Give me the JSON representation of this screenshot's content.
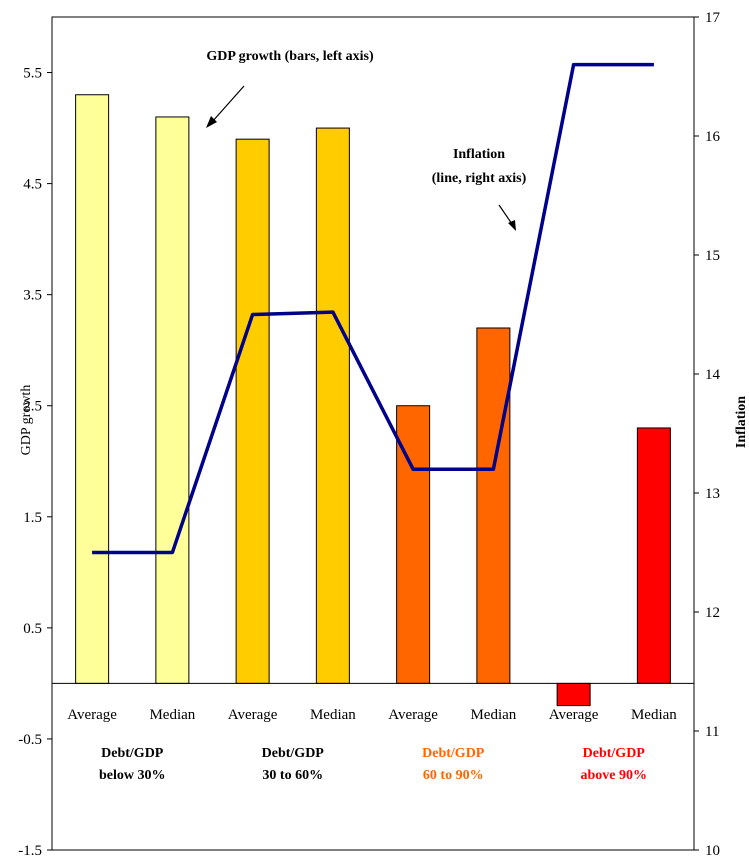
{
  "chart_data": {
    "type": "bar",
    "categories": [
      "Average",
      "Median",
      "Average",
      "Median",
      "Average",
      "Median",
      "Average",
      "Median"
    ],
    "groups": [
      {
        "label_line1": "Debt/GDP",
        "label_line2": "below 30%",
        "color": "#000000"
      },
      {
        "label_line1": "Debt/GDP",
        "label_line2": "30 to 60%",
        "color": "#000000"
      },
      {
        "label_line1": "Debt/GDP",
        "label_line2": "60 to 90%",
        "color": "#FF6600"
      },
      {
        "label_line1": "Debt/GDP",
        "label_line2": "above 90%",
        "color": "#FF0000"
      }
    ],
    "series": [
      {
        "type": "bar",
        "axis": "left",
        "values": [
          5.3,
          5.1,
          4.9,
          5.0,
          2.5,
          3.2,
          -0.2,
          2.3
        ],
        "colors": [
          "#FFFF99",
          "#FFFF99",
          "#FFCC00",
          "#FFCC00",
          "#FF6600",
          "#FF6600",
          "#FF0000",
          "#FF0000"
        ]
      },
      {
        "type": "line",
        "axis": "right",
        "values": [
          12.5,
          12.5,
          14.5,
          14.52,
          13.2,
          13.2,
          16.6,
          16.6
        ],
        "color": "#00008B"
      }
    ],
    "ylabel": "GDP growth",
    "y2label": "Inflation",
    "ylim": [
      -1.5,
      6.0
    ],
    "y2lim": [
      10,
      17
    ],
    "yticks": [
      "-1.5",
      "-0.5",
      "0.5",
      "1.5",
      "2.5",
      "3.5",
      "4.5",
      "5.5"
    ],
    "y2ticks": [
      "10",
      "11",
      "12",
      "13",
      "14",
      "15",
      "16",
      "17"
    ],
    "annotations": [
      {
        "lines": [
          "GDP growth (bars, left axis)"
        ]
      },
      {
        "lines": [
          "Inflation",
          "(line, right axis)"
        ]
      }
    ]
  }
}
